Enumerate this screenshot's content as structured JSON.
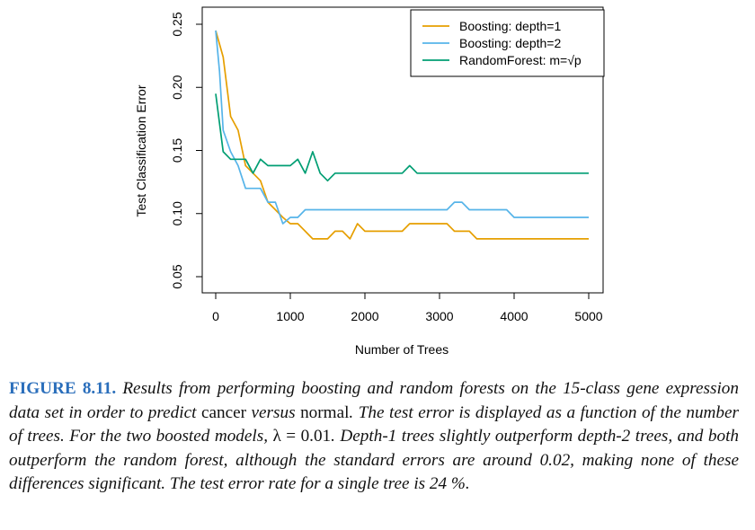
{
  "chart_data": {
    "type": "line",
    "xlabel": "Number of Trees",
    "ylabel": "Test Classification Error",
    "xlim": [
      0,
      5000
    ],
    "ylim": [
      0.05,
      0.25
    ],
    "xticks": [
      "0",
      "1000",
      "2000",
      "3000",
      "4000",
      "5000"
    ],
    "yticks": [
      "0.05",
      "0.10",
      "0.15",
      "0.20",
      "0.25"
    ],
    "grid": false,
    "legend_position": "top-right",
    "series": [
      {
        "name": "Boosting: depth=1",
        "color": "#E69F00",
        "x": [
          0,
          100,
          200,
          300,
          400,
          500,
          600,
          700,
          800,
          900,
          1000,
          1100,
          1200,
          1300,
          1400,
          1500,
          1600,
          1700,
          1800,
          1900,
          2000,
          2500,
          2600,
          3100,
          3200,
          3400,
          3500,
          4000,
          5000
        ],
        "y": [
          0.245,
          0.224,
          0.177,
          0.166,
          0.138,
          0.132,
          0.126,
          0.109,
          0.103,
          0.097,
          0.092,
          0.092,
          0.086,
          0.08,
          0.08,
          0.08,
          0.086,
          0.086,
          0.08,
          0.092,
          0.086,
          0.086,
          0.092,
          0.092,
          0.086,
          0.086,
          0.08,
          0.08,
          0.08
        ]
      },
      {
        "name": "Boosting: depth=2",
        "color": "#56B4E9",
        "x": [
          0,
          50,
          100,
          200,
          300,
          400,
          500,
          600,
          700,
          800,
          900,
          1000,
          1100,
          1200,
          1500,
          3100,
          3200,
          3300,
          3400,
          3900,
          4000,
          5000
        ],
        "y": [
          0.245,
          0.213,
          0.166,
          0.149,
          0.138,
          0.12,
          0.12,
          0.12,
          0.109,
          0.109,
          0.092,
          0.097,
          0.097,
          0.103,
          0.103,
          0.103,
          0.109,
          0.109,
          0.103,
          0.103,
          0.097,
          0.097
        ]
      },
      {
        "name": "RandomForest: m=√p",
        "color": "#009E73",
        "x": [
          0,
          100,
          200,
          300,
          400,
          500,
          600,
          700,
          800,
          900,
          1000,
          1100,
          1200,
          1300,
          1400,
          1500,
          1600,
          1700,
          2500,
          2600,
          2700,
          5000
        ],
        "y": [
          0.195,
          0.149,
          0.143,
          0.143,
          0.143,
          0.132,
          0.143,
          0.138,
          0.138,
          0.138,
          0.138,
          0.143,
          0.132,
          0.149,
          0.132,
          0.126,
          0.132,
          0.132,
          0.132,
          0.138,
          0.132,
          0.132
        ]
      }
    ]
  },
  "caption": {
    "label": "FIGURE 8.11.",
    "parts": [
      {
        "style": "it",
        "text": " Results from performing boosting and random forests on the 15-class gene expression data set in order to predict "
      },
      {
        "style": "rm",
        "text": "cancer"
      },
      {
        "style": "it",
        "text": " versus "
      },
      {
        "style": "rm",
        "text": "normal"
      },
      {
        "style": "it",
        "text": ". The test error is displayed as a function of the number of trees. For the two boosted models, "
      },
      {
        "style": "rm",
        "text": "λ = 0.01"
      },
      {
        "style": "it",
        "text": ". Depth-1 trees slightly outperform depth-2 trees, and both outperform the random forest, although the standard errors are around 0.02, making none of these differences significant. The test error rate for a single tree is 24 %."
      }
    ]
  }
}
